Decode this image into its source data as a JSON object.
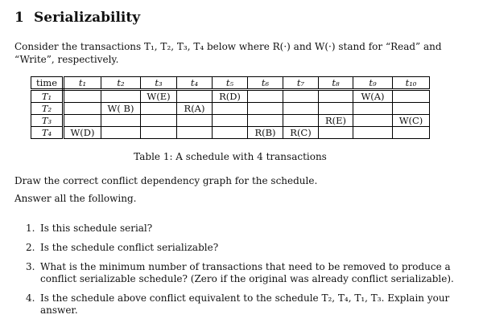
{
  "section": {
    "number": "1",
    "title": "Serializability"
  },
  "intro": "Consider the transactions T₁, T₂, T₃, T₄ below where R(·) and W(·) stand for “Read” and “Write”, respectively.",
  "table": {
    "header": [
      "time",
      "t₁",
      "t₂",
      "t₃",
      "t₄",
      "t₅",
      "t₆",
      "t₇",
      "t₈",
      "t₉",
      "t₁₀"
    ],
    "rows": [
      {
        "label": "T₁",
        "cells": [
          "",
          "",
          "W(E)",
          "",
          "R(D)",
          "",
          "",
          "",
          "W(A)",
          ""
        ]
      },
      {
        "label": "T₂",
        "cells": [
          "",
          "W( B)",
          "",
          "R(A)",
          "",
          "",
          "",
          "",
          "",
          ""
        ]
      },
      {
        "label": "T₃",
        "cells": [
          "",
          "",
          "",
          "",
          "",
          "",
          "",
          "R(E)",
          "",
          "W(C)"
        ]
      },
      {
        "label": "T₄",
        "cells": [
          "W(D)",
          "",
          "",
          "",
          "",
          "R(B)",
          "R(C)",
          "",
          "",
          ""
        ]
      }
    ],
    "caption": "Table 1: A schedule with 4 transactions"
  },
  "task": "Draw the correct conflict dependency graph for the schedule.",
  "answer_prompt": "Answer all the following.",
  "questions": [
    {
      "num": "1.",
      "text": "Is this schedule serial?"
    },
    {
      "num": "2.",
      "text": "Is the schedule conflict serializable?"
    },
    {
      "num": "3.",
      "text": "What is the minimum number of transactions that need to be removed to produce a conflict serializable schedule? (Zero if the original was already conflict serializable)."
    },
    {
      "num": "4.",
      "text": "Is the schedule above conflict equivalent to the schedule T₂, T₄, T₁, T₃. Explain your answer."
    }
  ]
}
